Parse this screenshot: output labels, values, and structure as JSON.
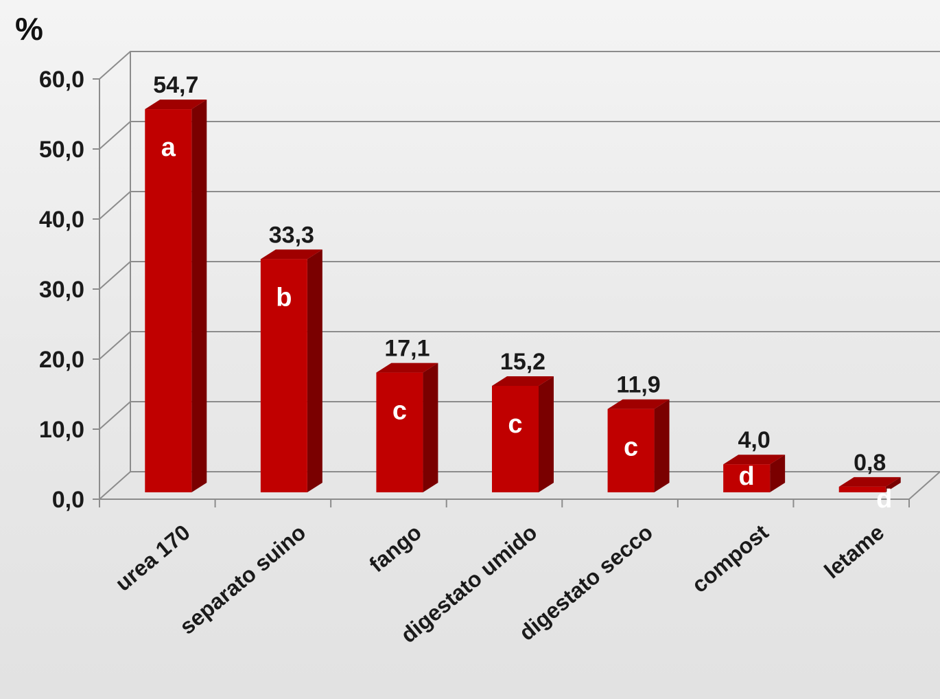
{
  "unit_label": "%",
  "colors": {
    "bar_front": "#c00000",
    "bar_side": "#7a0000",
    "bar_top": "#a00000",
    "grid": "#8c8c8c",
    "axis": "#8c8c8c",
    "text": "#1a1a1a",
    "letter": "#ffffff",
    "background": "#ececec"
  },
  "chart_data": {
    "type": "bar",
    "style": "3d",
    "categories": [
      "urea 170",
      "separato suino",
      "fango",
      "digestato umido",
      "digestato secco",
      "compost",
      "letame"
    ],
    "values": [
      54.7,
      33.3,
      17.1,
      15.2,
      11.9,
      4.0,
      0.8
    ],
    "value_labels": [
      "54,7",
      "33,3",
      "17,1",
      "15,2",
      "11,9",
      "4,0",
      "0,8"
    ],
    "group_letters": [
      "a",
      "b",
      "c",
      "c",
      "c",
      "d",
      "d"
    ],
    "y_ticks": [
      0,
      10,
      20,
      30,
      40,
      50,
      60
    ],
    "y_tick_labels": [
      "0,0",
      "10,0",
      "20,0",
      "30,0",
      "40,0",
      "50,0",
      "60,0"
    ],
    "ylim": [
      0,
      60
    ],
    "ylabel": "%",
    "xlabel": "",
    "title": "",
    "grid": true,
    "legend": "none"
  }
}
